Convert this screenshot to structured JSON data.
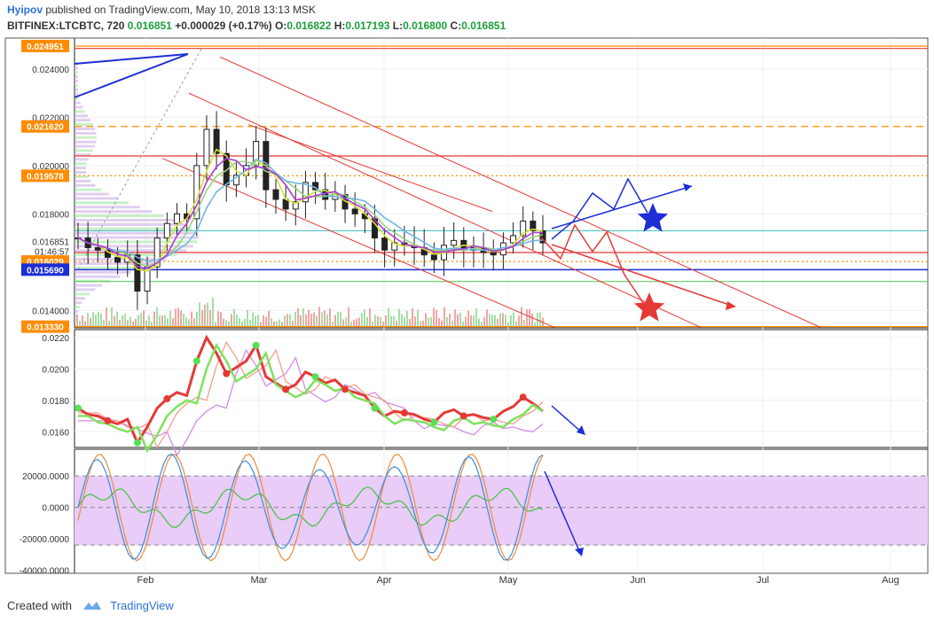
{
  "header": {
    "author": "Hyipov",
    "published": "published on TradingView.com, May 10, 2018 13:13 MSK",
    "symbol": "BITFINEX:LTCBTC, 720",
    "last": "0.016851",
    "change": "+0.000029 (+0.17%)",
    "o_label": "O:",
    "o": "0.016822",
    "h_label": "H:",
    "h": "0.017193",
    "l_label": "L:",
    "l": "0.016800",
    "c_label": "C:",
    "c": "0.016851"
  },
  "colors": {
    "bg": "#ffffff",
    "grid": "#eef0f3",
    "candle": "#222222",
    "orange": "#ff8c00",
    "red": "#e53935",
    "blue": "#1c2ed6",
    "green": "#5fce5f",
    "teal": "#4fc3c3",
    "purple": "#b04ad6",
    "band": "#e9ccf7",
    "profile": "#c9a5e0",
    "footer_link": "#2a72d6"
  },
  "chart_data": [
    {
      "type": "candlestick",
      "title": "BITFINEX:LTCBTC, 720",
      "x_tick_labels": [
        "Feb",
        "Mar",
        "Apr",
        "May",
        "Jun",
        "Jul",
        "Aug"
      ],
      "y_tick_labels": [
        "0.024000",
        "0.022000",
        "0.020000",
        "0.018000",
        "0.014000"
      ],
      "ylim": [
        0.01328,
        0.02528
      ],
      "price_labels": [
        {
          "text": "0.024951",
          "color": "#ff8c00",
          "value": 0.024951
        },
        {
          "text": "0.021620",
          "color": "#ff8c00",
          "value": 0.02162
        },
        {
          "text": "0.019578",
          "color": "#ff8c00",
          "value": 0.019578
        },
        {
          "text": "0.016029",
          "color": "#ff8c00",
          "value": 0.016029
        },
        {
          "text": "0.015690",
          "color": "#1c2ed6",
          "value": 0.01569
        },
        {
          "text": "0.013330",
          "color": "#ff8c00",
          "value": 0.01333
        }
      ],
      "last_price_label": "0.016851",
      "countdown": "01:46:57",
      "horizontal_levels": [
        {
          "value": 0.024951,
          "color": "#ff8c00",
          "style": "solid"
        },
        {
          "value": 0.024851,
          "color": "#e53935",
          "style": "solid"
        },
        {
          "value": 0.02162,
          "color": "#ff8c00",
          "style": "dashed"
        },
        {
          "value": 0.0204,
          "color": "#e53935",
          "style": "solid"
        },
        {
          "value": 0.019578,
          "color": "#ff8c00",
          "style": "dotted"
        },
        {
          "value": 0.0173,
          "color": "#4fc3c3",
          "style": "solid"
        },
        {
          "value": 0.0164,
          "color": "#e53935",
          "style": "solid"
        },
        {
          "value": 0.016029,
          "color": "#ff8c00",
          "style": "dotted"
        },
        {
          "value": 0.01569,
          "color": "#1c2ed6",
          "style": "solid"
        },
        {
          "value": 0.0152,
          "color": "#5fce5f",
          "style": "solid"
        },
        {
          "value": 0.01333,
          "color": "#ff8c00",
          "style": "solid"
        }
      ],
      "series_close": [
        0.017,
        0.0166,
        0.0165,
        0.0162,
        0.016,
        0.0163,
        0.0148,
        0.0158,
        0.017,
        0.0176,
        0.018,
        0.0178,
        0.02,
        0.0215,
        0.0205,
        0.0192,
        0.0196,
        0.02,
        0.021,
        0.019,
        0.0186,
        0.0182,
        0.0185,
        0.0193,
        0.019,
        0.0186,
        0.0188,
        0.0182,
        0.018,
        0.0178,
        0.017,
        0.0165,
        0.0168,
        0.0167,
        0.0166,
        0.0163,
        0.0161,
        0.0167,
        0.0169,
        0.0165,
        0.0166,
        0.0164,
        0.0163,
        0.0168,
        0.0171,
        0.0177,
        0.0173,
        0.0168
      ]
    },
    {
      "type": "line",
      "y_tick_labels": [
        "0.0220",
        "0.0200",
        "0.0180",
        "0.0160"
      ],
      "ylim": [
        0.015,
        0.0225
      ]
    },
    {
      "type": "line",
      "y_tick_labels": [
        "20000.0000",
        "0.0000",
        "-20000.0000",
        "-40000.0000"
      ],
      "ylim": [
        -42000,
        37000
      ],
      "band": [
        -24000,
        20000
      ]
    }
  ],
  "footer": {
    "created": "Created with",
    "brand": "TradingView"
  }
}
